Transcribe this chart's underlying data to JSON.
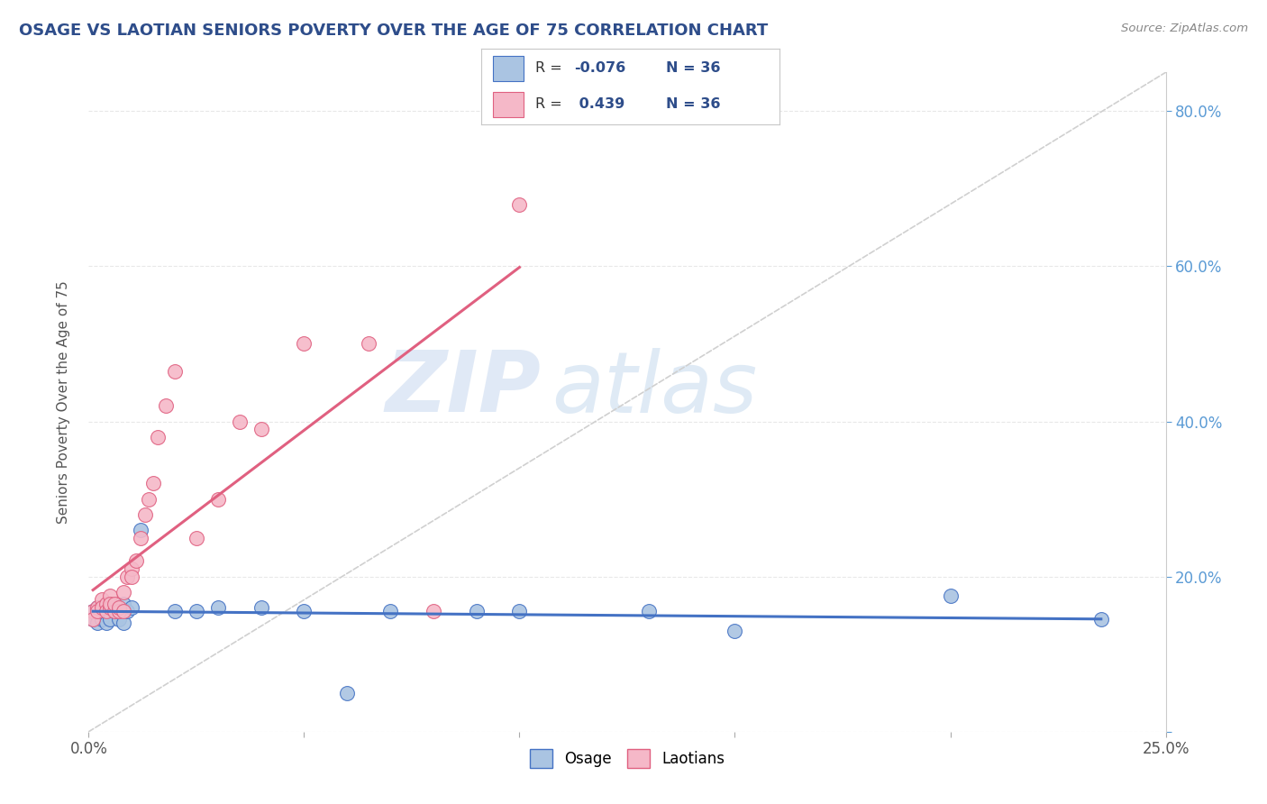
{
  "title": "OSAGE VS LAOTIAN SENIORS POVERTY OVER THE AGE OF 75 CORRELATION CHART",
  "source": "Source: ZipAtlas.com",
  "ylabel": "Seniors Poverty Over the Age of 75",
  "xlim": [
    0.0,
    0.25
  ],
  "ylim": [
    0.0,
    0.85
  ],
  "R_osage": -0.076,
  "R_laotian": 0.439,
  "N_osage": 36,
  "N_laotian": 36,
  "osage_color": "#aac4e2",
  "laotian_color": "#f5b8c8",
  "osage_line_color": "#4472c4",
  "laotian_line_color": "#e06080",
  "ref_line_color": "#d0d0d0",
  "background_color": "#ffffff",
  "grid_color": "#e8e8e8",
  "watermark_zip": "ZIP",
  "watermark_atlas": "atlas",
  "osage_x": [
    0.001,
    0.001,
    0.002,
    0.002,
    0.002,
    0.003,
    0.003,
    0.003,
    0.004,
    0.004,
    0.004,
    0.005,
    0.005,
    0.005,
    0.006,
    0.006,
    0.007,
    0.007,
    0.008,
    0.008,
    0.009,
    0.01,
    0.012,
    0.02,
    0.025,
    0.03,
    0.04,
    0.05,
    0.06,
    0.07,
    0.09,
    0.1,
    0.13,
    0.15,
    0.2,
    0.235
  ],
  "osage_y": [
    0.155,
    0.145,
    0.16,
    0.15,
    0.14,
    0.155,
    0.16,
    0.145,
    0.155,
    0.165,
    0.14,
    0.155,
    0.16,
    0.145,
    0.155,
    0.16,
    0.145,
    0.155,
    0.165,
    0.14,
    0.155,
    0.16,
    0.26,
    0.155,
    0.155,
    0.16,
    0.16,
    0.155,
    0.05,
    0.155,
    0.155,
    0.155,
    0.155,
    0.13,
    0.175,
    0.145
  ],
  "laotian_x": [
    0.001,
    0.001,
    0.002,
    0.002,
    0.003,
    0.003,
    0.004,
    0.004,
    0.005,
    0.005,
    0.005,
    0.006,
    0.006,
    0.007,
    0.007,
    0.008,
    0.008,
    0.009,
    0.01,
    0.01,
    0.011,
    0.012,
    0.013,
    0.014,
    0.015,
    0.016,
    0.018,
    0.02,
    0.025,
    0.03,
    0.035,
    0.04,
    0.05,
    0.065,
    0.08,
    0.1
  ],
  "laotian_y": [
    0.155,
    0.145,
    0.16,
    0.155,
    0.17,
    0.16,
    0.165,
    0.155,
    0.175,
    0.16,
    0.165,
    0.155,
    0.165,
    0.155,
    0.16,
    0.18,
    0.155,
    0.2,
    0.21,
    0.2,
    0.22,
    0.25,
    0.28,
    0.3,
    0.32,
    0.38,
    0.42,
    0.465,
    0.25,
    0.3,
    0.4,
    0.39,
    0.5,
    0.5,
    0.155,
    0.68
  ]
}
